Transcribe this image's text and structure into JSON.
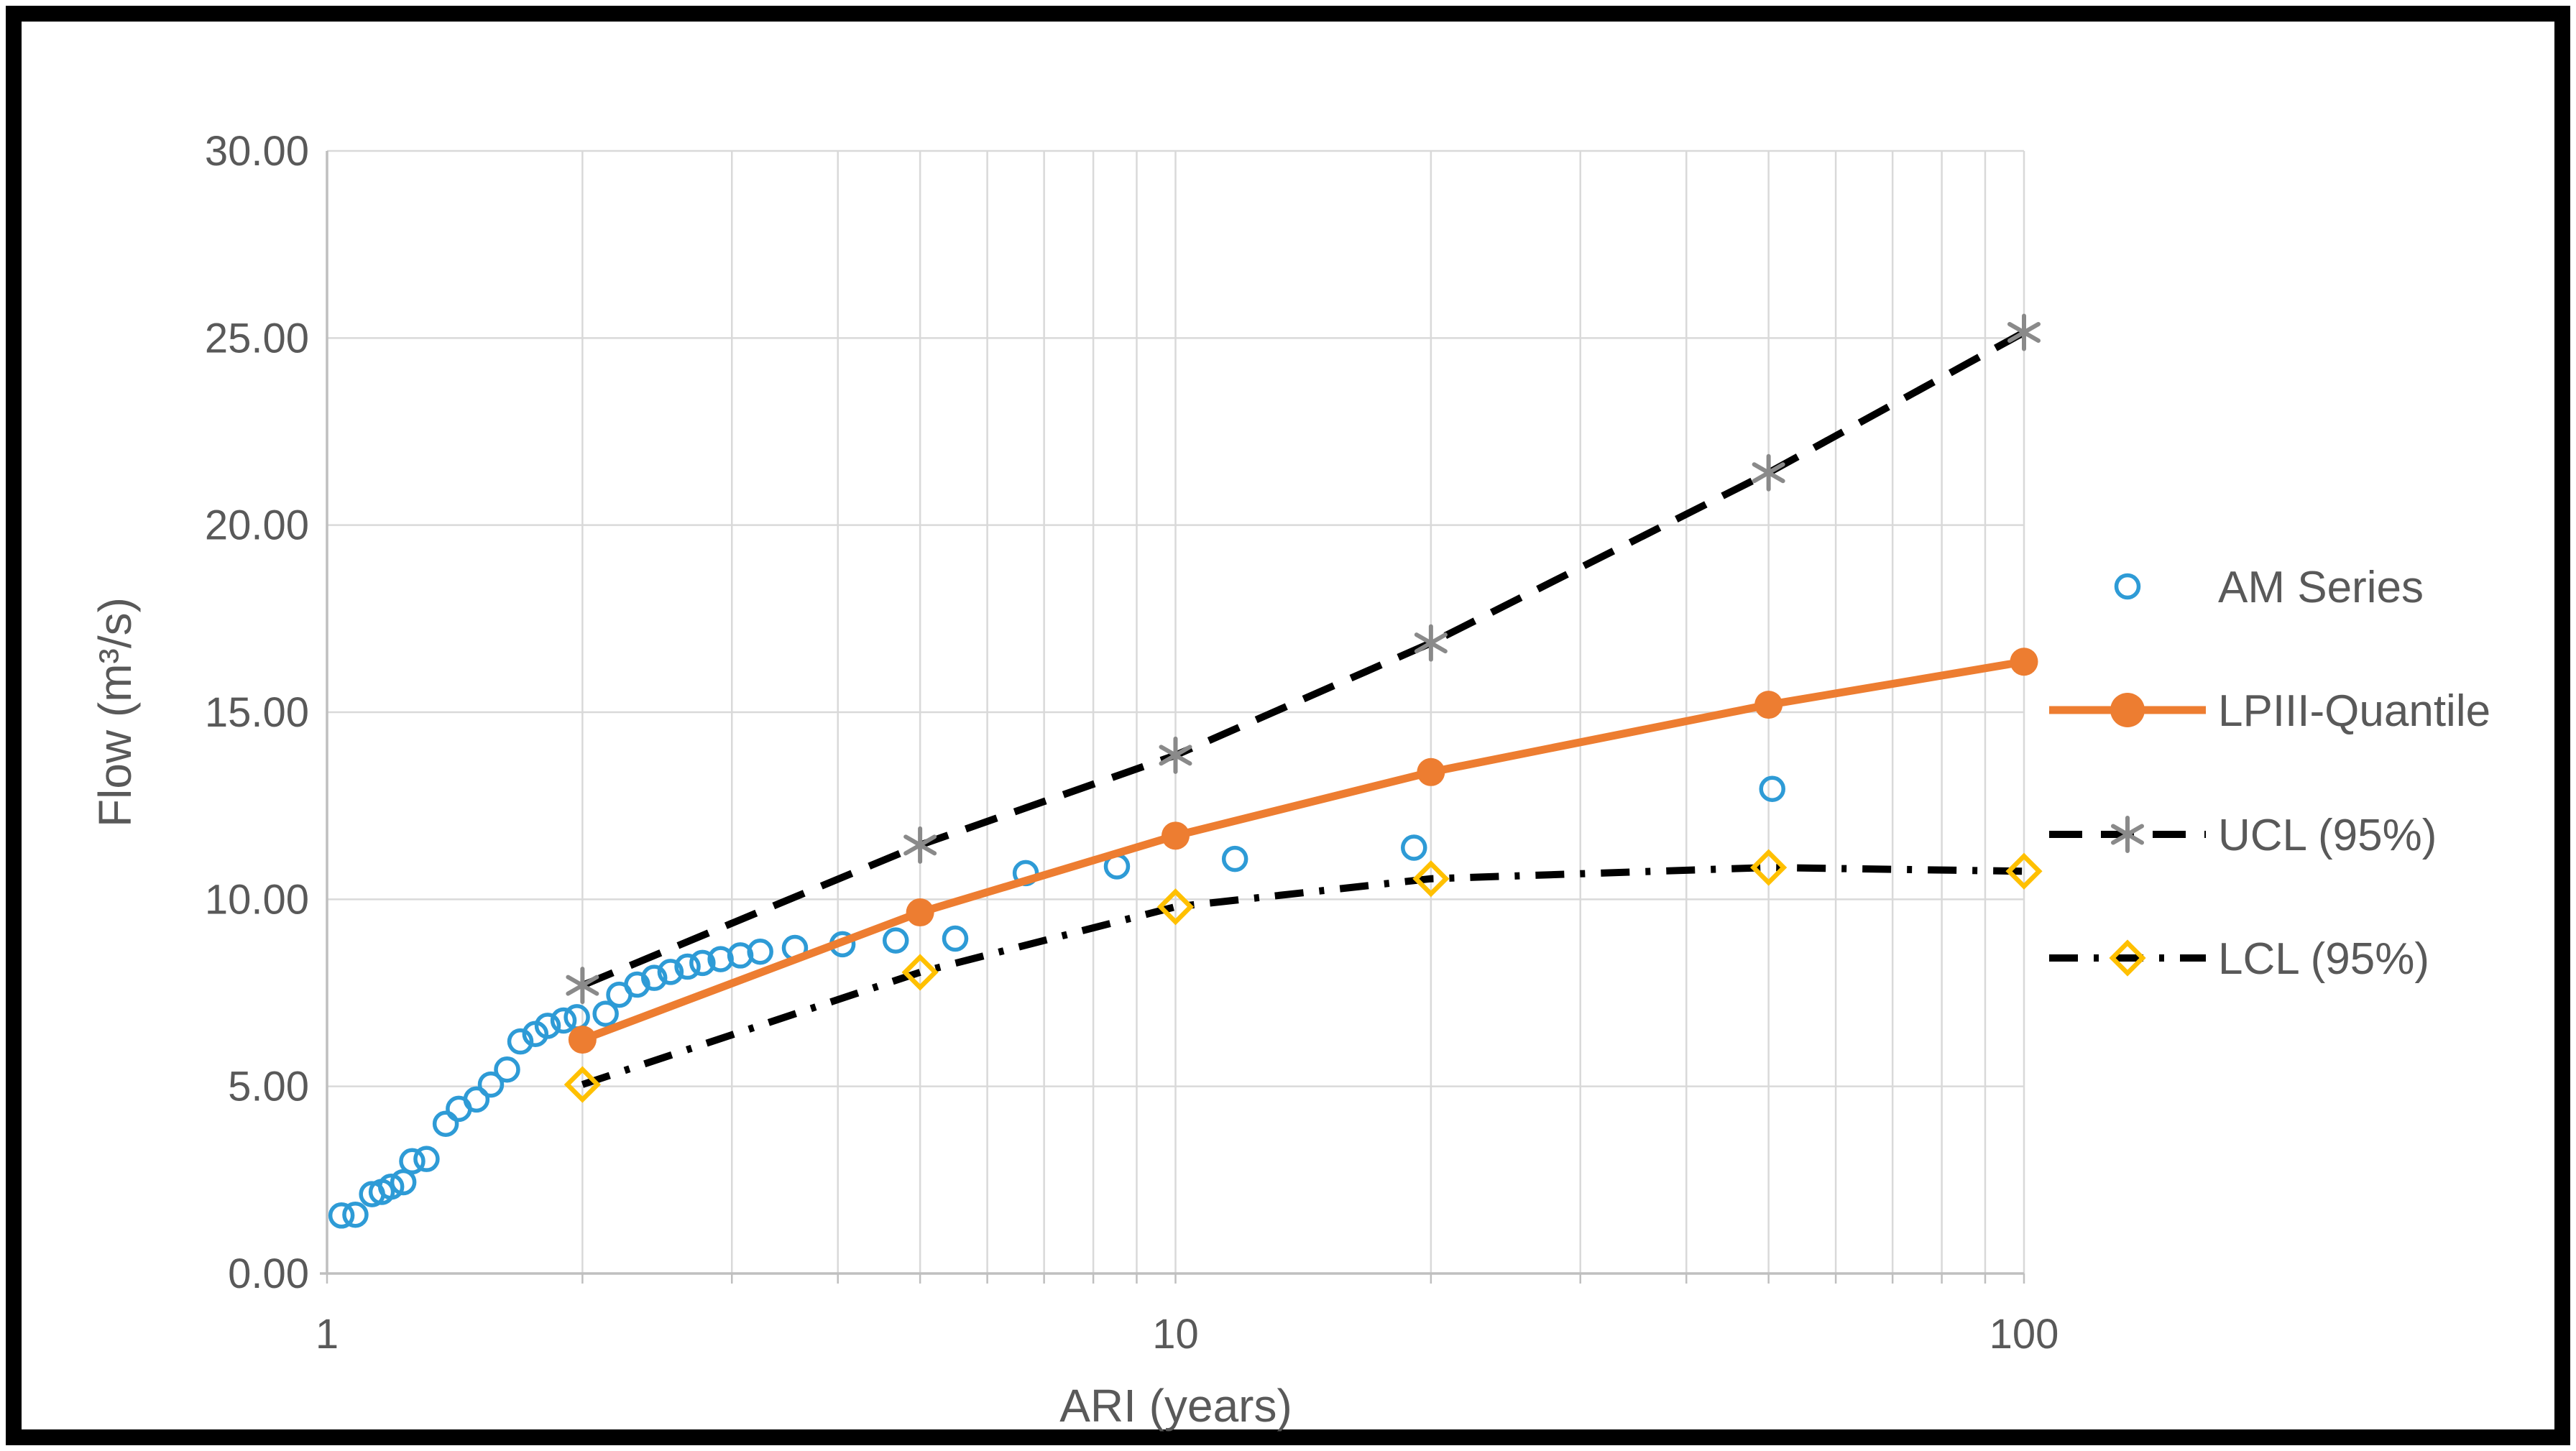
{
  "chart_data": {
    "type": "scatter",
    "title": "",
    "xlabel": "ARI (years)",
    "ylabel": "Flow (m³/s)",
    "x_scale": "log",
    "xlim": [
      1,
      100
    ],
    "ylim": [
      0,
      30
    ],
    "x_tick_values": [
      1,
      10,
      100
    ],
    "x_tick_labels": [
      "1",
      "10",
      "100"
    ],
    "x_gridline_values": [
      1,
      2,
      3,
      4,
      5,
      6,
      7,
      8,
      9,
      10,
      20,
      30,
      40,
      50,
      60,
      70,
      80,
      90,
      100
    ],
    "y_tick_values": [
      0,
      5,
      10,
      15,
      20,
      25,
      30
    ],
    "y_tick_labels": [
      "0.00",
      "5.00",
      "10.00",
      "15.00",
      "20.00",
      "25.00",
      "30.00"
    ],
    "grid": true,
    "legend_position": "right",
    "colors": {
      "am_series": "#2E9BD6",
      "lpiii": "#ED7D31",
      "confidence_line": "#000000",
      "ucl_marker": "#8A8A8A",
      "lcl_marker": "#FFC000",
      "gridline": "#D9D9D9",
      "axis_line": "#BFBFBF",
      "text": "#595959",
      "border": "#000000"
    },
    "series": [
      {
        "name": "AM Series",
        "type": "scatter",
        "marker": "open-circle",
        "color_key": "am_series",
        "points": [
          [
            1.04,
            1.55
          ],
          [
            1.08,
            1.57
          ],
          [
            1.13,
            2.12
          ],
          [
            1.16,
            2.18
          ],
          [
            1.19,
            2.32
          ],
          [
            1.23,
            2.44
          ],
          [
            1.26,
            3.0
          ],
          [
            1.31,
            3.06
          ],
          [
            1.38,
            4.0
          ],
          [
            1.43,
            4.4
          ],
          [
            1.5,
            4.65
          ],
          [
            1.56,
            5.05
          ],
          [
            1.63,
            5.45
          ],
          [
            1.69,
            6.2
          ],
          [
            1.76,
            6.4
          ],
          [
            1.82,
            6.62
          ],
          [
            1.9,
            6.76
          ],
          [
            1.97,
            6.85
          ],
          [
            2.13,
            6.94
          ],
          [
            2.21,
            7.45
          ],
          [
            2.32,
            7.72
          ],
          [
            2.43,
            7.9
          ],
          [
            2.54,
            8.06
          ],
          [
            2.66,
            8.2
          ],
          [
            2.77,
            8.3
          ],
          [
            2.91,
            8.4
          ],
          [
            3.07,
            8.5
          ],
          [
            3.24,
            8.6
          ],
          [
            3.56,
            8.7
          ],
          [
            4.05,
            8.8
          ],
          [
            4.68,
            8.9
          ],
          [
            5.5,
            8.95
          ],
          [
            6.66,
            10.7
          ],
          [
            8.53,
            10.88
          ],
          [
            11.75,
            11.08
          ],
          [
            19.1,
            11.38
          ],
          [
            50.5,
            12.95
          ]
        ]
      },
      {
        "name": "LPIII-Quantile",
        "type": "line",
        "marker": "filled-circle",
        "line_style": "solid",
        "color_key": "lpiii",
        "points": [
          [
            2,
            6.25
          ],
          [
            5,
            9.65
          ],
          [
            10,
            11.7
          ],
          [
            20,
            13.4
          ],
          [
            50,
            15.2
          ],
          [
            100,
            16.35
          ]
        ]
      },
      {
        "name": "UCL (95%)",
        "type": "line",
        "marker": "asterisk",
        "line_style": "dashed",
        "color_key": "confidence_line",
        "marker_color_key": "ucl_marker",
        "points": [
          [
            2,
            7.7
          ],
          [
            5,
            11.45
          ],
          [
            10,
            13.85
          ],
          [
            20,
            16.85
          ],
          [
            50,
            21.4
          ],
          [
            100,
            25.15
          ]
        ]
      },
      {
        "name": "LCL (95%)",
        "type": "line",
        "marker": "open-diamond",
        "line_style": "dash-dot",
        "color_key": "confidence_line",
        "marker_color_key": "lcl_marker",
        "points": [
          [
            2,
            5.05
          ],
          [
            5,
            8.05
          ],
          [
            10,
            9.8
          ],
          [
            20,
            10.55
          ],
          [
            50,
            10.85
          ],
          [
            100,
            10.75
          ]
        ]
      }
    ]
  }
}
